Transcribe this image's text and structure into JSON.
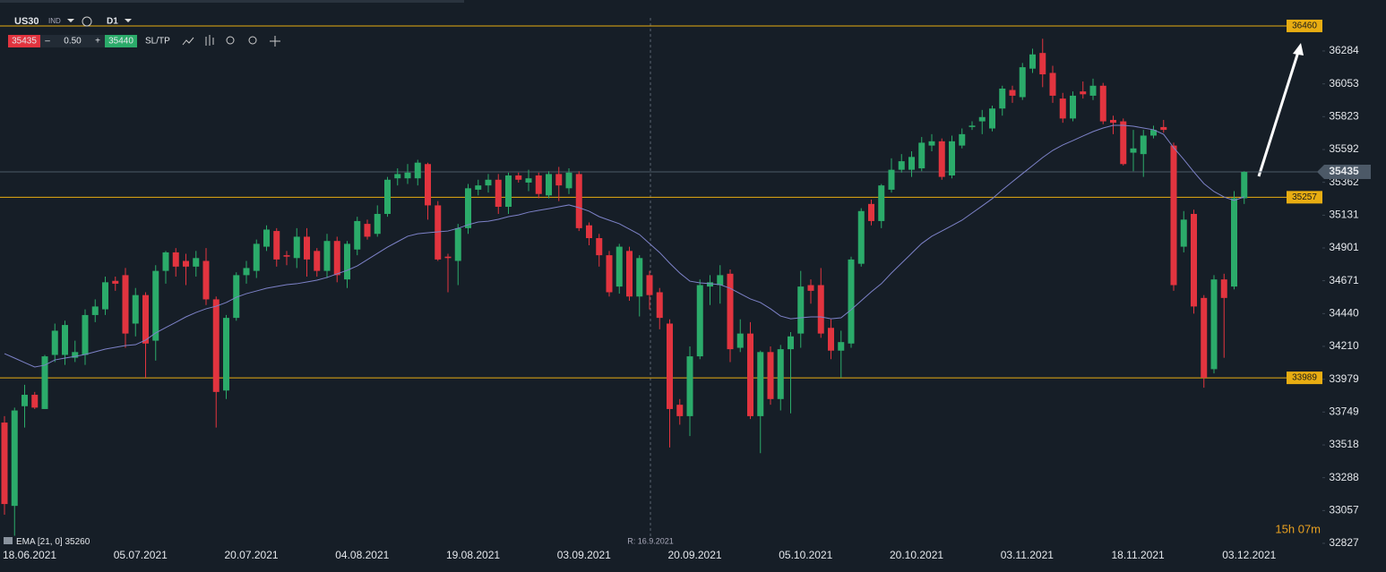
{
  "toolbar": {
    "symbol": "US30",
    "market": "IND",
    "timeframe": "D1",
    "sell": 35435,
    "minus": "–",
    "lot": "0.50",
    "plus": "+",
    "buy": 35440,
    "sltp": "SL/TP"
  },
  "crosshair_label": "R: 16.9.2021",
  "countdown": "15h 07m",
  "chart_data": {
    "type": "candlestick",
    "categories": [
      "18.06.2021",
      null,
      null,
      null,
      null,
      null,
      null,
      null,
      null,
      null,
      null,
      "05.07.2021",
      null,
      null,
      null,
      null,
      null,
      null,
      null,
      null,
      null,
      null,
      "20.07.2021",
      null,
      null,
      null,
      null,
      null,
      null,
      null,
      null,
      null,
      null,
      "04.08.2021",
      null,
      null,
      null,
      null,
      null,
      null,
      null,
      null,
      null,
      null,
      "19.08.2021",
      null,
      null,
      null,
      null,
      null,
      null,
      null,
      null,
      null,
      null,
      "03.09.2021",
      null,
      null,
      null,
      null,
      null,
      null,
      null,
      null,
      null,
      null,
      "20.09.2021",
      null,
      null,
      null,
      null,
      null,
      null,
      null,
      null,
      null,
      null,
      "05.10.2021",
      null,
      null,
      null,
      null,
      null,
      null,
      null,
      null,
      null,
      null,
      "20.10.2021",
      null,
      null,
      null,
      null,
      null,
      null,
      null,
      null,
      null,
      null,
      "03.11.2021",
      null,
      null,
      null,
      null,
      null,
      null,
      null,
      null,
      null,
      null,
      "18.11.2021",
      null,
      null,
      null,
      null,
      null,
      null,
      null,
      null,
      null,
      null,
      "03.12.2021",
      null,
      null
    ],
    "open": [
      33675,
      33090,
      33790,
      33870,
      33770,
      34150,
      34150,
      34130,
      34150,
      34430,
      34470,
      34670,
      34710,
      34370,
      34570,
      34250,
      34740,
      34870,
      34810,
      34770,
      34810,
      34540,
      33900,
      34410,
      34710,
      34740,
      34910,
      35020,
      34850,
      34830,
      34980,
      34880,
      34740,
      34950,
      34680,
      34890,
      35070,
      35000,
      35140,
      35390,
      35390,
      35390,
      35490,
      35200,
      34840,
      34810,
      35040,
      35310,
      35340,
      35380,
      35190,
      35410,
      35360,
      35410,
      35270,
      35420,
      35320,
      35420,
      35060,
      34970,
      34850,
      34630,
      34880,
      34560,
      34710,
      34590,
      34370,
      33800,
      33720,
      34140,
      34630,
      34640,
      34720,
      34200,
      34300,
      33720,
      34170,
      33840,
      34190,
      34300,
      34640,
      34640,
      34340,
      34180,
      34230,
      34790,
      35210,
      35090,
      35310,
      35450,
      35450,
      35460,
      35620,
      35650,
      35410,
      35620,
      35750,
      35790,
      35740,
      35880,
      36010,
      35960,
      36160,
      36270,
      36130,
      35950,
      35810,
      36000,
      35970,
      36040,
      35800,
      35790,
      35570,
      35560,
      35690,
      35750,
      35620,
      34910,
      35140,
      34550,
      34050,
      34680,
      34630,
      35250
    ],
    "high": [
      33720,
      33780,
      33940,
      33890,
      34150,
      34370,
      34390,
      34250,
      34470,
      34540,
      34700,
      34700,
      34760,
      34620,
      34590,
      34780,
      34880,
      34900,
      34860,
      34880,
      34900,
      34560,
      34430,
      34730,
      34810,
      34960,
      35060,
      35040,
      34880,
      35040,
      35040,
      34900,
      35000,
      34980,
      34950,
      35120,
      35100,
      35200,
      35400,
      35460,
      35490,
      35520,
      35500,
      35230,
      34860,
      35070,
      35350,
      35380,
      35420,
      35420,
      35430,
      35430,
      35450,
      35430,
      35440,
      35470,
      35460,
      35440,
      35080,
      35000,
      34880,
      34930,
      34910,
      34850,
      34740,
      34620,
      34400,
      33840,
      34210,
      34680,
      34710,
      34780,
      34750,
      34400,
      34380,
      34180,
      34210,
      34220,
      34310,
      34740,
      34680,
      34760,
      34400,
      34320,
      34840,
      35180,
      35240,
      35350,
      35530,
      35560,
      35580,
      35680,
      35700,
      35670,
      35690,
      35740,
      35790,
      35870,
      35900,
      36040,
      36040,
      36200,
      36300,
      36370,
      36180,
      35990,
      36000,
      36070,
      36090,
      36060,
      35830,
      35810,
      35730,
      35730,
      35760,
      35800,
      35640,
      35160,
      35170,
      34570,
      34710,
      34720,
      35300,
      35440
    ],
    "low": [
      33028,
      32880,
      33640,
      33770,
      33770,
      34100,
      34080,
      34100,
      34080,
      34380,
      34430,
      34600,
      34200,
      34280,
      33990,
      34110,
      34650,
      34700,
      34640,
      34700,
      34500,
      33640,
      33840,
      34390,
      34650,
      34690,
      34880,
      34770,
      34780,
      34760,
      34700,
      34700,
      34690,
      34660,
      34620,
      34850,
      34960,
      34980,
      35120,
      35340,
      35350,
      35340,
      35100,
      34810,
      34590,
      34640,
      35000,
      35270,
      35290,
      35140,
      35140,
      35360,
      35300,
      35250,
      35250,
      35230,
      35280,
      35020,
      34920,
      34770,
      34560,
      34580,
      34530,
      34420,
      34470,
      34330,
      33500,
      33660,
      33580,
      34120,
      34500,
      34510,
      34100,
      34170,
      33700,
      33460,
      33800,
      33760,
      33740,
      34200,
      34510,
      34270,
      34120,
      33990,
      34200,
      34770,
      35060,
      35040,
      35290,
      35430,
      35400,
      35440,
      35580,
      35380,
      35390,
      35600,
      35730,
      35700,
      35720,
      35830,
      35920,
      35940,
      36130,
      36030,
      35920,
      35780,
      35790,
      35950,
      35940,
      35770,
      35700,
      35480,
      35440,
      35400,
      35670,
      35710,
      34600,
      34870,
      34440,
      33920,
      34020,
      34130,
      34610,
      35210
    ],
    "close": [
      33103,
      33760,
      33870,
      33780,
      34140,
      34320,
      34360,
      34170,
      34430,
      34490,
      34660,
      34650,
      34300,
      34570,
      34230,
      34740,
      34870,
      34770,
      34770,
      34830,
      34540,
      33890,
      34410,
      34710,
      34760,
      34930,
      35030,
      34820,
      34840,
      34980,
      34820,
      34740,
      34950,
      34710,
      34930,
      35090,
      34980,
      35140,
      35380,
      35420,
      35430,
      35500,
      35200,
      34820,
      34830,
      35040,
      35320,
      35340,
      35380,
      35190,
      35410,
      35380,
      35390,
      35280,
      35420,
      35340,
      35430,
      35040,
      34970,
      34850,
      34590,
      34910,
      34560,
      34830,
      34570,
      34410,
      33770,
      33720,
      34140,
      34640,
      34660,
      34710,
      34190,
      34300,
      33720,
      34170,
      33840,
      34190,
      34280,
      34630,
      34600,
      34300,
      34180,
      34240,
      34820,
      35160,
      35090,
      35340,
      35450,
      35510,
      35540,
      35640,
      35650,
      35400,
      35650,
      35700,
      35760,
      35820,
      35880,
      36020,
      35970,
      36170,
      36260,
      36120,
      35970,
      35810,
      35970,
      35980,
      36040,
      35790,
      35780,
      35490,
      35600,
      35690,
      35730,
      35730,
      34640,
      35100,
      34490,
      33990,
      34680,
      34550,
      35250,
      35435
    ],
    "up_color": "#2bab6a",
    "down_color": "#e2343f",
    "ema": {
      "name": "EMA [21, 0]",
      "color": "#7d82c8",
      "values": [
        34159,
        34128,
        34096,
        34065,
        34078,
        34115,
        34128,
        34140,
        34153,
        34172,
        34191,
        34203,
        34216,
        34222,
        34254,
        34304,
        34342,
        34379,
        34417,
        34448,
        34474,
        34492,
        34518,
        34555,
        34580,
        34599,
        34618,
        34631,
        34643,
        34650,
        34662,
        34675,
        34694,
        34719,
        34744,
        34775,
        34819,
        34863,
        34907,
        34945,
        34983,
        35001,
        35008,
        35014,
        35020,
        35039,
        35064,
        35083,
        35089,
        35102,
        35121,
        35133,
        35152,
        35165,
        35177,
        35190,
        35203,
        35184,
        35159,
        35121,
        35096,
        35071,
        35033,
        34995,
        34932,
        34869,
        34794,
        34725,
        34668,
        34656,
        34650,
        34643,
        34618,
        34580,
        34543,
        34518,
        34474,
        34423,
        34404,
        34411,
        34417,
        34417,
        34404,
        34411,
        34467,
        34530,
        34593,
        34650,
        34725,
        34794,
        34863,
        34932,
        34983,
        35020,
        35058,
        35096,
        35146,
        35196,
        35247,
        35309,
        35366,
        35423,
        35479,
        35536,
        35586,
        35624,
        35655,
        35687,
        35718,
        35743,
        35762,
        35762,
        35756,
        35743,
        35731,
        35699,
        35605,
        35523,
        35435,
        35353,
        35297,
        35259,
        35234,
        35260
      ]
    },
    "levels": [
      36460,
      35257,
      33989
    ],
    "level_color": "#e8ad12",
    "last_price": 35435,
    "last_price_color": "#4c5967",
    "ylim": [
      32808,
      36642
    ],
    "yticks": [
      36284,
      36053,
      35823,
      35592,
      35362,
      35131,
      34901,
      34671,
      34440,
      34210,
      33979,
      33749,
      33518,
      33288,
      33057,
      32827
    ]
  }
}
